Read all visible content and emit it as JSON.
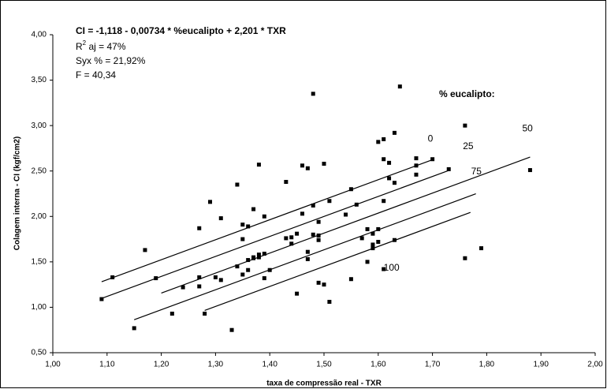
{
  "chart_data": {
    "type": "scatter",
    "xlabel": "taxa de compressão real - TXR",
    "ylabel": "Colagem interna - CI (kgf/cm2)",
    "annotations": {
      "equation": "CI = -1,118 - 0,00734 * %eucalipto + 2,201 * TXR",
      "r2_prefix": "R",
      "r2_sup": "2",
      "r2_rest": " aj = 47%",
      "syx": "Syx % = 21,92%",
      "f": "F = 40,34",
      "legend_title": "% eucalipto:"
    },
    "xlim": [
      1.0,
      2.0
    ],
    "ylim": [
      0.5,
      4.0
    ],
    "xticks": [
      {
        "value": 1.0,
        "label": "1,00"
      },
      {
        "value": 1.1,
        "label": "1,10"
      },
      {
        "value": 1.2,
        "label": "1,20"
      },
      {
        "value": 1.3,
        "label": "1,30"
      },
      {
        "value": 1.4,
        "label": "1,40"
      },
      {
        "value": 1.5,
        "label": "1,50"
      },
      {
        "value": 1.6,
        "label": "1,60"
      },
      {
        "value": 1.7,
        "label": "1,70"
      },
      {
        "value": 1.8,
        "label": "1,80"
      },
      {
        "value": 1.9,
        "label": "1,90"
      },
      {
        "value": 2.0,
        "label": "2,00"
      }
    ],
    "yticks": [
      {
        "value": 0.5,
        "label": "0,50"
      },
      {
        "value": 1.0,
        "label": "1,00"
      },
      {
        "value": 1.5,
        "label": "1,50"
      },
      {
        "value": 2.0,
        "label": "2,00"
      },
      {
        "value": 2.5,
        "label": "2,50"
      },
      {
        "value": 3.0,
        "label": "3,00"
      },
      {
        "value": 3.5,
        "label": "3,50"
      },
      {
        "value": 4.0,
        "label": "4,00"
      }
    ],
    "color": "#000000",
    "x": [
      1.09,
      1.11,
      1.15,
      1.17,
      1.19,
      1.22,
      1.24,
      1.27,
      1.27,
      1.27,
      1.28,
      1.29,
      1.3,
      1.31,
      1.31,
      1.33,
      1.34,
      1.34,
      1.35,
      1.35,
      1.35,
      1.36,
      1.36,
      1.36,
      1.37,
      1.37,
      1.37,
      1.38,
      1.38,
      1.38,
      1.39,
      1.39,
      1.39,
      1.4,
      1.43,
      1.43,
      1.44,
      1.44,
      1.45,
      1.45,
      1.46,
      1.46,
      1.47,
      1.47,
      1.47,
      1.48,
      1.48,
      1.48,
      1.49,
      1.49,
      1.49,
      1.49,
      1.5,
      1.5,
      1.51,
      1.51,
      1.54,
      1.55,
      1.55,
      1.56,
      1.57,
      1.58,
      1.58,
      1.59,
      1.59,
      1.59,
      1.6,
      1.6,
      1.6,
      1.61,
      1.61,
      1.61,
      1.61,
      1.62,
      1.62,
      1.63,
      1.63,
      1.63,
      1.64,
      1.67,
      1.67,
      1.67,
      1.7,
      1.73,
      1.76,
      1.76,
      1.79,
      1.88
    ],
    "y": [
      1.09,
      1.33,
      0.77,
      1.63,
      1.32,
      0.93,
      1.22,
      1.33,
      1.87,
      1.23,
      0.93,
      2.16,
      1.33,
      1.3,
      1.98,
      0.75,
      2.35,
      1.45,
      1.36,
      1.75,
      1.91,
      1.41,
      1.52,
      1.89,
      1.55,
      1.54,
      2.08,
      1.58,
      2.57,
      1.55,
      1.32,
      1.59,
      2.0,
      1.41,
      2.38,
      1.76,
      1.77,
      1.7,
      1.15,
      1.81,
      2.03,
      2.56,
      1.53,
      1.61,
      2.53,
      3.35,
      1.8,
      2.12,
      1.74,
      1.79,
      1.94,
      1.27,
      2.58,
      1.25,
      1.06,
      2.17,
      2.02,
      1.31,
      2.3,
      2.13,
      1.76,
      1.86,
      1.5,
      1.69,
      1.65,
      1.81,
      1.86,
      2.82,
      1.72,
      2.85,
      1.42,
      2.17,
      2.63,
      2.59,
      2.42,
      2.37,
      1.74,
      2.92,
      3.43,
      2.64,
      2.56,
      2.46,
      2.63,
      2.52,
      3.0,
      1.54,
      1.65,
      2.51
    ],
    "fits": [
      {
        "name": "0",
        "x": [
          1.09,
          1.7
        ],
        "y": [
          1.281,
          2.624
        ]
      },
      {
        "name": "25",
        "x": [
          1.09,
          1.73
        ],
        "y": [
          1.098,
          2.506
        ]
      },
      {
        "name": "50",
        "x": [
          1.2,
          1.88
        ],
        "y": [
          1.156,
          2.653
        ]
      },
      {
        "name": "75",
        "x": [
          1.15,
          1.78
        ],
        "y": [
          0.863,
          2.249
        ]
      },
      {
        "name": "100",
        "x": [
          1.28,
          1.77
        ],
        "y": [
          0.965,
          2.044
        ]
      }
    ]
  }
}
